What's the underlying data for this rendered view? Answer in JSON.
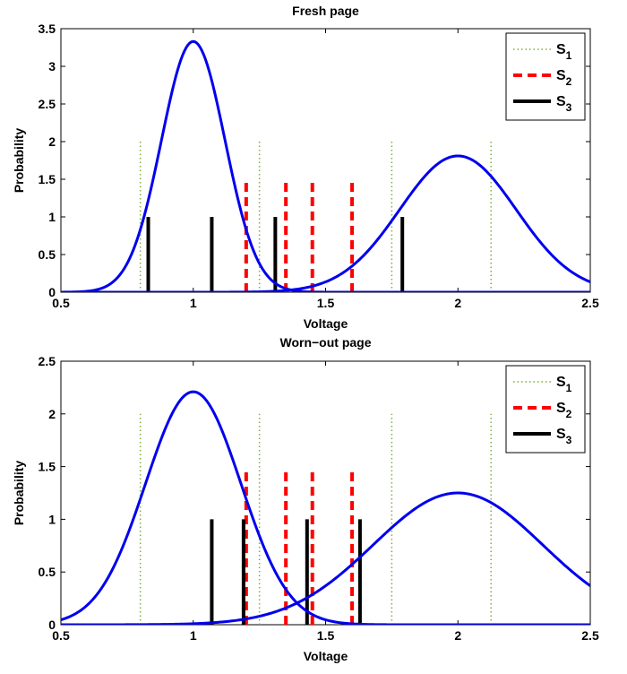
{
  "chart_data": [
    {
      "type": "line",
      "title": "Fresh page",
      "xlabel": "Voltage",
      "ylabel": "Probability",
      "xlim": [
        0.5,
        2.5
      ],
      "ylim": [
        0,
        3.5
      ],
      "xticks": [
        0.5,
        1,
        1.5,
        2,
        2.5
      ],
      "xtick_labels": [
        "0.5",
        "1",
        "1.5",
        "2",
        "2.5"
      ],
      "yticks": [
        0,
        0.5,
        1,
        1.5,
        2,
        2.5,
        3,
        3.5
      ],
      "ytick_labels": [
        "0",
        "0.5",
        "1",
        "1.5",
        "2",
        "2.5",
        "3",
        "3.5"
      ],
      "curves": [
        {
          "mean": 1.0,
          "sigma": 0.12,
          "peak": 3.33
        },
        {
          "mean": 2.0,
          "sigma": 0.22,
          "peak": 1.81
        }
      ],
      "curve_color": "#0000ee",
      "thresholds": [
        {
          "name": "S1",
          "sub": "1",
          "style": "dotted",
          "color": "#7faf3f",
          "height": 2.0,
          "x": [
            0.8,
            1.25,
            1.75,
            2.125
          ]
        },
        {
          "name": "S2",
          "sub": "2",
          "style": "dashed",
          "color": "#ff0000",
          "height": 1.5,
          "x": [
            1.2,
            1.35,
            1.45,
            1.6
          ]
        },
        {
          "name": "S3",
          "sub": "3",
          "style": "solid",
          "color": "#000000",
          "height": 1.0,
          "x": [
            0.83,
            1.07,
            1.31,
            1.79
          ]
        }
      ],
      "legend": "top-right",
      "grid": false
    },
    {
      "type": "line",
      "title": "Worn−out page",
      "xlabel": "Voltage",
      "ylabel": "Probability",
      "xlim": [
        0.5,
        2.5
      ],
      "ylim": [
        0,
        2.5
      ],
      "xticks": [
        0.5,
        1,
        1.5,
        2,
        2.5
      ],
      "xtick_labels": [
        "0.5",
        "1",
        "1.5",
        "2",
        "2.5"
      ],
      "yticks": [
        0,
        0.5,
        1,
        1.5,
        2,
        2.5
      ],
      "ytick_labels": [
        "0",
        "0.5",
        "1",
        "1.5",
        "2",
        "2.5"
      ],
      "curves": [
        {
          "mean": 1.0,
          "sigma": 0.18,
          "peak": 2.21
        },
        {
          "mean": 2.0,
          "sigma": 0.32,
          "peak": 1.25
        }
      ],
      "curve_color": "#0000ee",
      "thresholds": [
        {
          "name": "S1",
          "sub": "1",
          "style": "dotted",
          "color": "#7faf3f",
          "height": 2.0,
          "x": [
            0.8,
            1.25,
            1.75,
            2.125
          ]
        },
        {
          "name": "S2",
          "sub": "2",
          "style": "dashed",
          "color": "#ff0000",
          "height": 1.47,
          "x": [
            1.2,
            1.35,
            1.45,
            1.6
          ]
        },
        {
          "name": "S3",
          "sub": "3",
          "style": "solid",
          "color": "#000000",
          "height": 1.0,
          "x": [
            1.07,
            1.19,
            1.43,
            1.63
          ]
        }
      ],
      "legend": "top-right",
      "grid": false
    }
  ]
}
